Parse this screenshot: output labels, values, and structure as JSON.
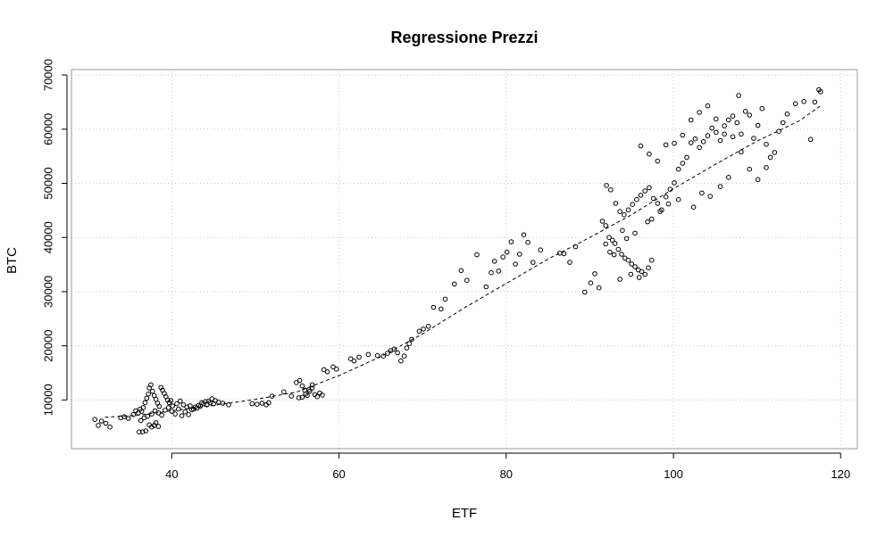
{
  "chart_data": {
    "type": "scatter",
    "title": "Regressione Prezzi",
    "xlabel": "ETF",
    "ylabel": "BTC",
    "xlim": [
      28,
      122
    ],
    "ylim": [
      1000,
      71000
    ],
    "x_ticks": [
      40,
      60,
      80,
      100,
      120
    ],
    "y_ticks": [
      10000,
      20000,
      30000,
      40000,
      50000,
      60000,
      70000
    ],
    "grid": true,
    "grid_style": "dotted",
    "fit_line_style": "dashed",
    "points": [
      [
        30.8,
        6400
      ],
      [
        31.2,
        5300
      ],
      [
        31.6,
        6100
      ],
      [
        32.1,
        5700
      ],
      [
        32.6,
        5000
      ],
      [
        33.9,
        6700
      ],
      [
        34.3,
        6900
      ],
      [
        34.8,
        6600
      ],
      [
        35.4,
        7300
      ],
      [
        35.7,
        8000
      ],
      [
        36.0,
        7600
      ],
      [
        36.2,
        8300
      ],
      [
        36.4,
        7900
      ],
      [
        36.6,
        8600
      ],
      [
        36.8,
        9500
      ],
      [
        37.0,
        10300
      ],
      [
        37.2,
        11100
      ],
      [
        37.3,
        12200
      ],
      [
        37.5,
        12800
      ],
      [
        37.7,
        11600
      ],
      [
        37.9,
        10800
      ],
      [
        38.1,
        10100
      ],
      [
        38.3,
        9400
      ],
      [
        38.5,
        8800
      ],
      [
        38.7,
        12300
      ],
      [
        38.9,
        11800
      ],
      [
        39.1,
        11200
      ],
      [
        39.3,
        10600
      ],
      [
        39.5,
        10000
      ],
      [
        39.7,
        9500
      ],
      [
        39.9,
        9900
      ],
      [
        40.1,
        8900
      ],
      [
        36.1,
        4100
      ],
      [
        36.5,
        4100
      ],
      [
        36.9,
        4300
      ],
      [
        37.3,
        5400
      ],
      [
        37.6,
        5000
      ],
      [
        37.9,
        5300
      ],
      [
        38.1,
        5800
      ],
      [
        38.4,
        5100
      ],
      [
        36.3,
        6200
      ],
      [
        36.7,
        6700
      ],
      [
        37.1,
        7000
      ],
      [
        37.6,
        7400
      ],
      [
        38.0,
        8000
      ],
      [
        38.4,
        7600
      ],
      [
        38.8,
        7200
      ],
      [
        39.2,
        8100
      ],
      [
        39.6,
        8600
      ],
      [
        40.0,
        7900
      ],
      [
        40.4,
        7400
      ],
      [
        40.8,
        8300
      ],
      [
        41.2,
        7100
      ],
      [
        41.6,
        7800
      ],
      [
        42.0,
        7300
      ],
      [
        42.4,
        8200
      ],
      [
        42.8,
        8700
      ],
      [
        43.2,
        9000
      ],
      [
        43.6,
        9500
      ],
      [
        44.0,
        9700
      ],
      [
        44.4,
        9800
      ],
      [
        44.8,
        10200
      ],
      [
        45.2,
        9900
      ],
      [
        45.6,
        9600
      ],
      [
        46.1,
        9400
      ],
      [
        46.8,
        9100
      ],
      [
        40.6,
        9300
      ],
      [
        41.0,
        9800
      ],
      [
        41.4,
        9100
      ],
      [
        41.8,
        8700
      ],
      [
        42.2,
        8900
      ],
      [
        42.6,
        8300
      ],
      [
        43.0,
        8500
      ],
      [
        43.4,
        8800
      ],
      [
        43.8,
        9300
      ],
      [
        44.2,
        9100
      ],
      [
        44.6,
        9500
      ],
      [
        45.0,
        9300
      ],
      [
        49.6,
        9300
      ],
      [
        50.2,
        9200
      ],
      [
        50.8,
        9400
      ],
      [
        51.3,
        9100
      ],
      [
        51.6,
        9500
      ],
      [
        52.0,
        10700
      ],
      [
        53.4,
        11500
      ],
      [
        54.3,
        10700
      ],
      [
        54.9,
        13200
      ],
      [
        55.3,
        13600
      ],
      [
        55.6,
        12600
      ],
      [
        55.9,
        11800
      ],
      [
        56.2,
        10800
      ],
      [
        56.5,
        11600
      ],
      [
        56.8,
        12200
      ],
      [
        57.1,
        11000
      ],
      [
        57.4,
        10600
      ],
      [
        57.7,
        11300
      ],
      [
        58.0,
        10900
      ],
      [
        55.2,
        10400
      ],
      [
        55.6,
        10500
      ],
      [
        56.0,
        11100
      ],
      [
        56.4,
        11900
      ],
      [
        56.8,
        12800
      ],
      [
        58.2,
        15600
      ],
      [
        58.6,
        15200
      ],
      [
        59.3,
        16100
      ],
      [
        59.7,
        15700
      ],
      [
        61.4,
        17600
      ],
      [
        61.8,
        17200
      ],
      [
        62.4,
        17900
      ],
      [
        63.5,
        18400
      ],
      [
        64.6,
        18200
      ],
      [
        65.3,
        18100
      ],
      [
        65.8,
        18600
      ],
      [
        66.2,
        19100
      ],
      [
        66.6,
        19400
      ],
      [
        67.0,
        18700
      ],
      [
        67.4,
        17200
      ],
      [
        67.8,
        18100
      ],
      [
        68.1,
        19600
      ],
      [
        68.4,
        20400
      ],
      [
        68.7,
        21200
      ],
      [
        69.6,
        22700
      ],
      [
        70.1,
        23100
      ],
      [
        70.7,
        23600
      ],
      [
        71.3,
        27100
      ],
      [
        72.2,
        26800
      ],
      [
        72.7,
        28600
      ],
      [
        73.8,
        31400
      ],
      [
        74.6,
        33900
      ],
      [
        75.3,
        32100
      ],
      [
        76.5,
        36800
      ],
      [
        77.6,
        30900
      ],
      [
        78.2,
        33500
      ],
      [
        78.6,
        35600
      ],
      [
        79.1,
        33800
      ],
      [
        79.6,
        36400
      ],
      [
        80.1,
        37300
      ],
      [
        80.6,
        39200
      ],
      [
        81.1,
        35100
      ],
      [
        81.6,
        36900
      ],
      [
        82.1,
        40500
      ],
      [
        82.6,
        39100
      ],
      [
        83.2,
        35400
      ],
      [
        84.1,
        37700
      ],
      [
        86.4,
        37100
      ],
      [
        86.9,
        37000
      ],
      [
        87.6,
        35400
      ],
      [
        88.3,
        38300
      ],
      [
        89.4,
        29900
      ],
      [
        90.1,
        31600
      ],
      [
        90.6,
        33300
      ],
      [
        91.1,
        30700
      ],
      [
        91.5,
        43000
      ],
      [
        91.9,
        42200
      ],
      [
        92.3,
        40000
      ],
      [
        92.7,
        39500
      ],
      [
        93.0,
        38900
      ],
      [
        93.4,
        37800
      ],
      [
        93.8,
        36900
      ],
      [
        94.2,
        36200
      ],
      [
        94.6,
        35800
      ],
      [
        95.0,
        35100
      ],
      [
        95.4,
        34600
      ],
      [
        95.8,
        34000
      ],
      [
        96.2,
        33700
      ],
      [
        96.6,
        33200
      ],
      [
        97.0,
        34400
      ],
      [
        97.4,
        35800
      ],
      [
        92.0,
        49600
      ],
      [
        92.5,
        48800
      ],
      [
        93.1,
        46300
      ],
      [
        93.6,
        44800
      ],
      [
        94.1,
        44200
      ],
      [
        94.6,
        45100
      ],
      [
        95.1,
        46100
      ],
      [
        95.6,
        47000
      ],
      [
        96.1,
        47800
      ],
      [
        96.6,
        48600
      ],
      [
        97.1,
        49200
      ],
      [
        97.6,
        47200
      ],
      [
        98.1,
        46300
      ],
      [
        98.6,
        45100
      ],
      [
        99.1,
        47500
      ],
      [
        99.6,
        48900
      ],
      [
        100.1,
        50100
      ],
      [
        100.6,
        52600
      ],
      [
        101.1,
        53700
      ],
      [
        101.6,
        54800
      ],
      [
        102.1,
        57500
      ],
      [
        102.6,
        58200
      ],
      [
        103.1,
        56600
      ],
      [
        103.6,
        57700
      ],
      [
        104.1,
        58800
      ],
      [
        104.6,
        60200
      ],
      [
        105.1,
        59400
      ],
      [
        105.6,
        57900
      ],
      [
        106.1,
        60600
      ],
      [
        106.6,
        61700
      ],
      [
        107.1,
        62400
      ],
      [
        107.6,
        61200
      ],
      [
        108.1,
        59100
      ],
      [
        108.6,
        63300
      ],
      [
        109.1,
        62600
      ],
      [
        109.6,
        58300
      ],
      [
        110.1,
        60700
      ],
      [
        110.6,
        63800
      ],
      [
        111.1,
        57200
      ],
      [
        111.6,
        54800
      ],
      [
        112.1,
        55700
      ],
      [
        112.6,
        59600
      ],
      [
        113.1,
        61200
      ],
      [
        113.6,
        62800
      ],
      [
        114.6,
        64700
      ],
      [
        115.6,
        65100
      ],
      [
        116.4,
        58100
      ],
      [
        116.9,
        65000
      ],
      [
        117.4,
        67300
      ],
      [
        117.6,
        66900
      ],
      [
        96.1,
        56900
      ],
      [
        97.1,
        55400
      ],
      [
        98.1,
        54100
      ],
      [
        99.1,
        57100
      ],
      [
        100.1,
        57400
      ],
      [
        101.1,
        58900
      ],
      [
        102.1,
        61700
      ],
      [
        103.1,
        63100
      ],
      [
        104.1,
        64300
      ],
      [
        105.1,
        61900
      ],
      [
        106.1,
        59100
      ],
      [
        107.1,
        58600
      ],
      [
        108.1,
        55800
      ],
      [
        109.1,
        52600
      ],
      [
        110.1,
        50700
      ],
      [
        111.1,
        52900
      ],
      [
        107.8,
        66200
      ],
      [
        105.6,
        49400
      ],
      [
        106.6,
        51100
      ],
      [
        104.4,
        47600
      ],
      [
        103.4,
        48200
      ],
      [
        102.4,
        45600
      ],
      [
        100.6,
        47000
      ],
      [
        99.4,
        46200
      ],
      [
        98.4,
        44800
      ],
      [
        97.4,
        43400
      ],
      [
        96.9,
        42900
      ],
      [
        95.4,
        40800
      ],
      [
        94.4,
        39800
      ],
      [
        93.9,
        41300
      ],
      [
        92.9,
        36800
      ],
      [
        92.4,
        37300
      ],
      [
        91.9,
        38800
      ],
      [
        93.6,
        32300
      ],
      [
        94.9,
        33200
      ],
      [
        95.9,
        32600
      ]
    ],
    "fit_line": [
      [
        32,
        6800
      ],
      [
        36,
        7200
      ],
      [
        40,
        8000
      ],
      [
        45,
        9000
      ],
      [
        50,
        10100
      ],
      [
        55,
        11500
      ],
      [
        60,
        14500
      ],
      [
        65,
        18000
      ],
      [
        70,
        22200
      ],
      [
        75,
        27000
      ],
      [
        80,
        31500
      ],
      [
        85,
        36000
      ],
      [
        90,
        40000
      ],
      [
        95,
        44200
      ],
      [
        100,
        49000
      ],
      [
        105,
        53500
      ],
      [
        110,
        57800
      ],
      [
        115,
        61500
      ],
      [
        117.5,
        64200
      ]
    ]
  }
}
